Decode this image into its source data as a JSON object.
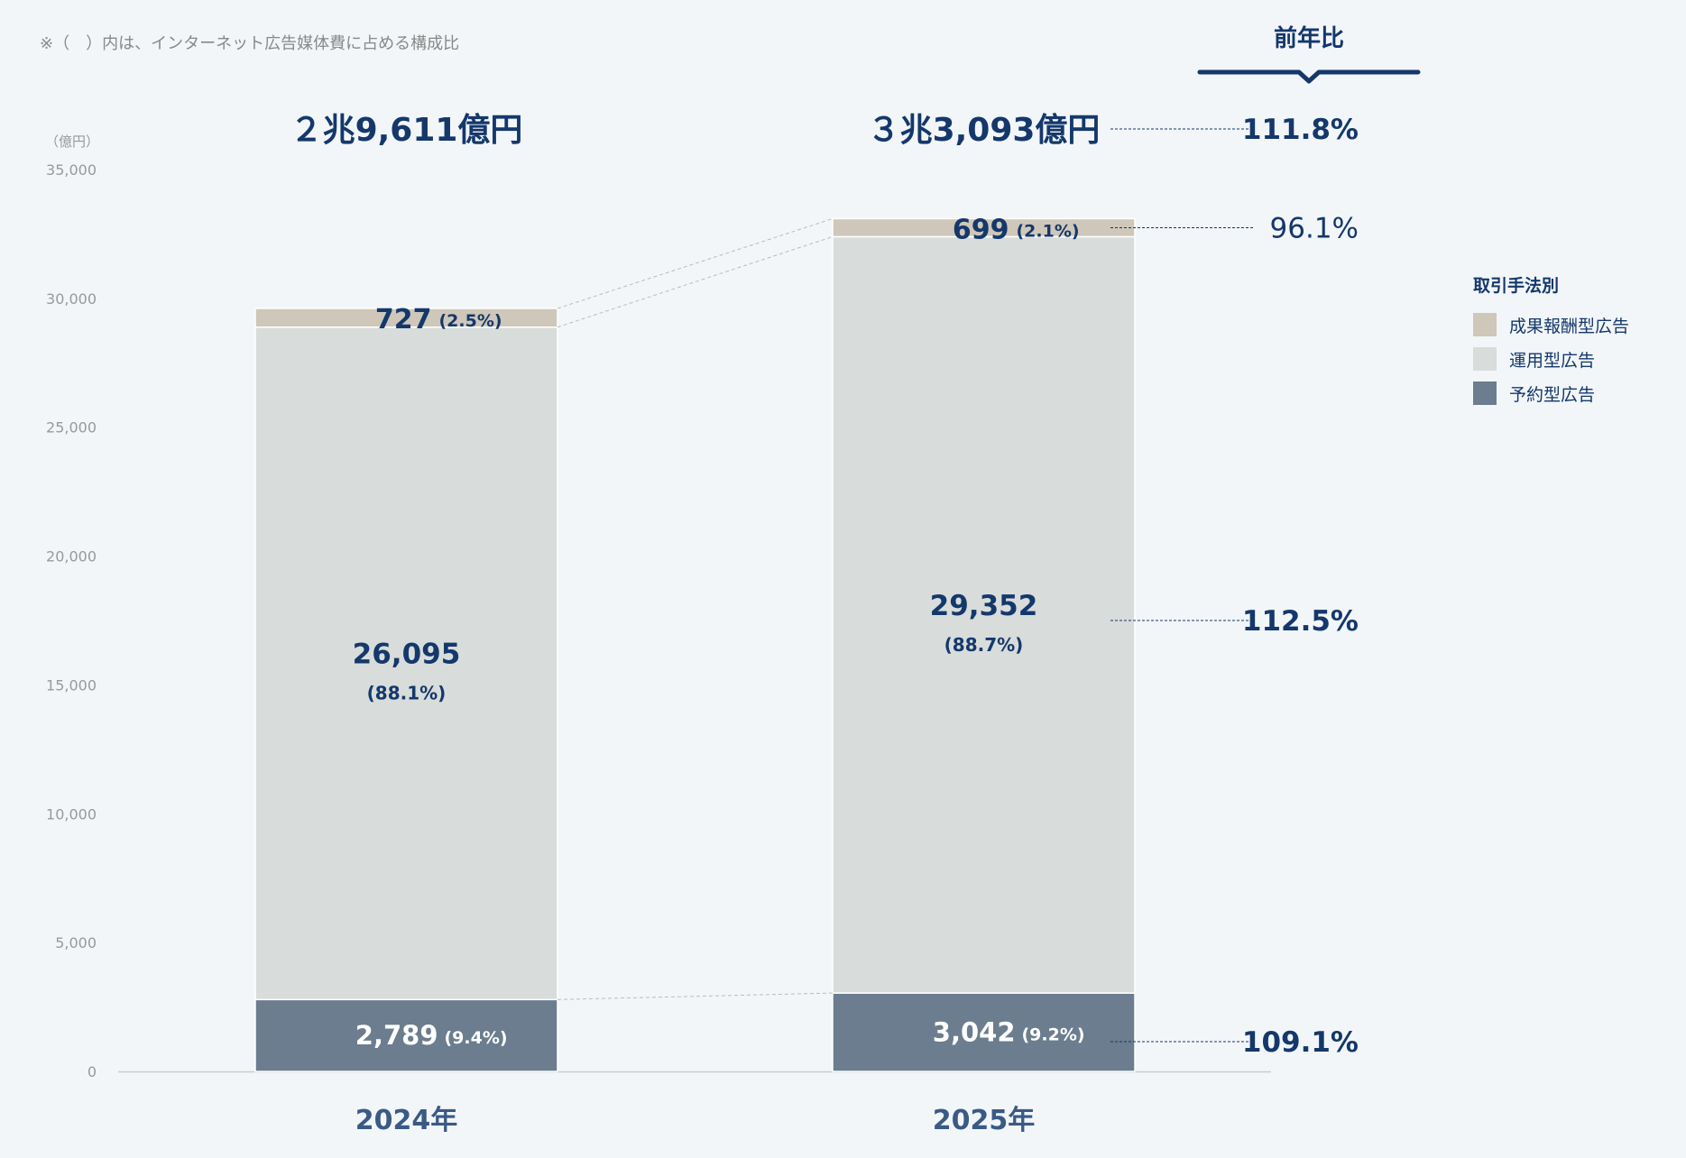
{
  "note": "※（　）内は、インターネット広告媒体費に占める構成比",
  "yoy_header": "前年比",
  "colors": {
    "navy": "#14386b",
    "performance": "#cfc7b9",
    "operational": "#d8dcda",
    "reserved": "#6b7d8e",
    "background": "#f2f6f9"
  },
  "chart_data": {
    "type": "bar",
    "stacked": true,
    "categories": [
      "2024年",
      "2025年"
    ],
    "ylabel": "（億円）",
    "ylim": [
      0,
      35000
    ],
    "yticks": [
      "0",
      "5,000",
      "10,000",
      "15,000",
      "20,000",
      "25,000",
      "30,000",
      "35,000"
    ],
    "totals": [
      "２兆9,611億円",
      "３兆3,093億円"
    ],
    "legend_title": "取引手法別",
    "legend_placement": "right",
    "series": [
      {
        "name": "予約型広告",
        "key": "reserved",
        "values": [
          2789,
          3042
        ],
        "value_labels": [
          "2,789",
          "3,042"
        ],
        "share_labels": [
          "(9.4%)",
          "(9.2%)"
        ]
      },
      {
        "name": "運用型広告",
        "key": "operational",
        "values": [
          26095,
          29352
        ],
        "value_labels": [
          "26,095",
          "29,352"
        ],
        "share_labels": [
          "(88.1%)",
          "(88.7%)"
        ]
      },
      {
        "name": "成果報酬型広告",
        "key": "performance",
        "values": [
          727,
          699
        ],
        "value_labels": [
          "727",
          "699"
        ],
        "share_labels": [
          "(2.5%)",
          "(2.1%)"
        ]
      }
    ],
    "yoy": {
      "total": "111.8%",
      "performance": "96.1%",
      "operational": "112.5%",
      "reserved": "109.1%"
    }
  }
}
